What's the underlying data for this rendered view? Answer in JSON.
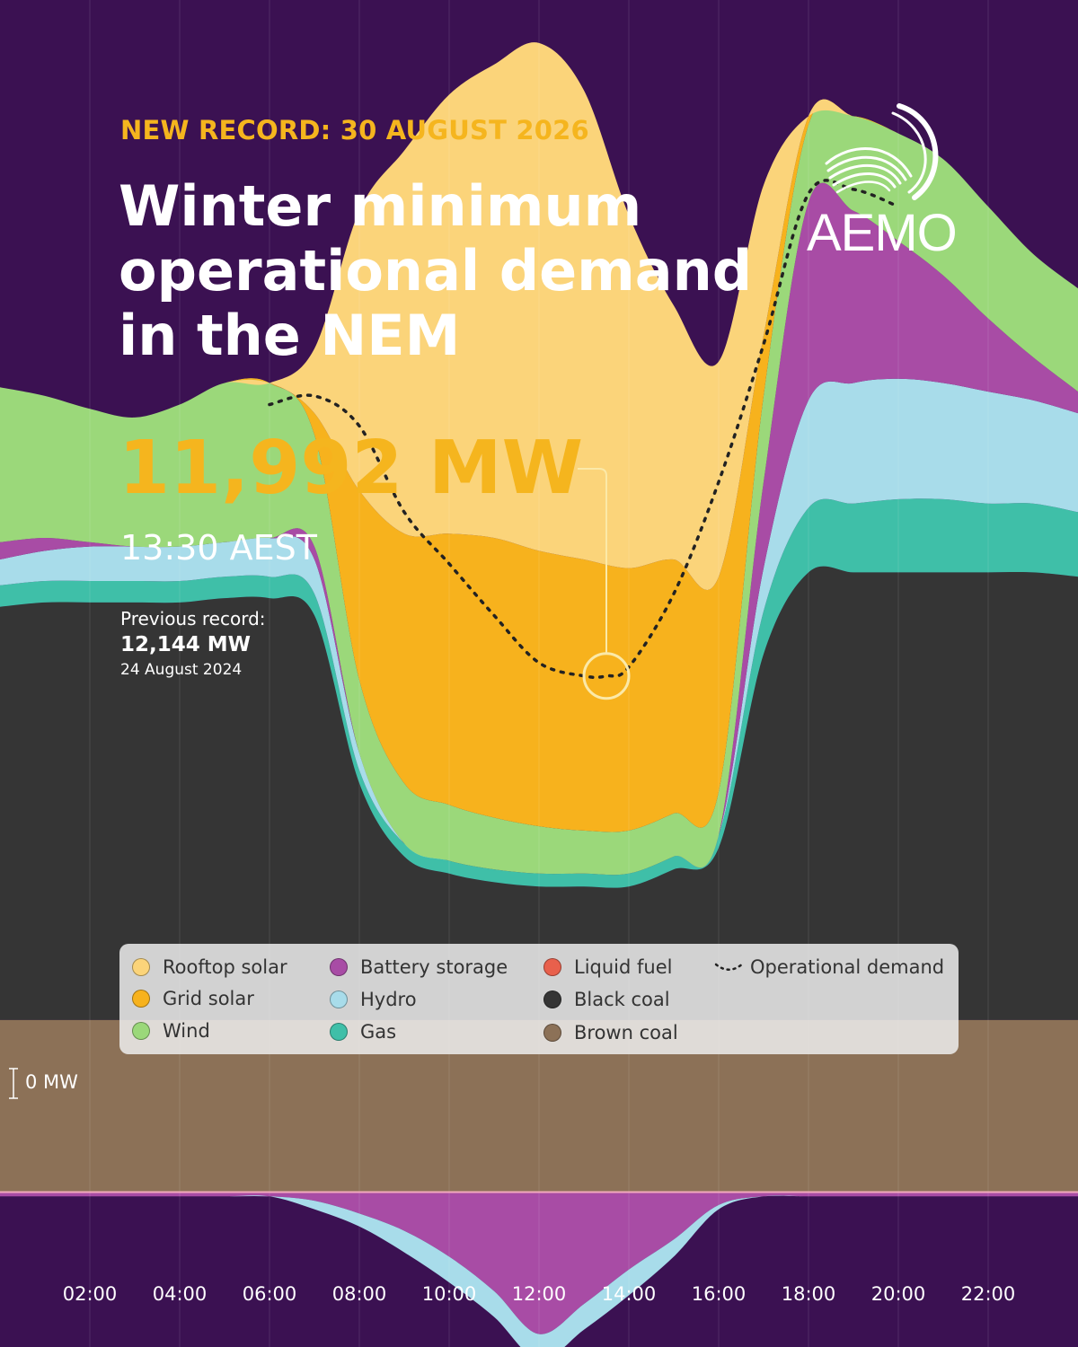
{
  "header": {
    "kicker": "NEW RECORD: 30 AUGUST 2026",
    "title_lines": [
      "Winter minimum",
      "operational demand",
      "in the NEM"
    ]
  },
  "record": {
    "value": "11,992 MW",
    "time": "13:30 AEST",
    "previous_label": "Previous record:",
    "previous_value": "12,144 MW",
    "previous_date": "24 August 2024"
  },
  "logo": {
    "text": "AEMO"
  },
  "zero_label": "0 MW",
  "legend": [
    {
      "label": "Rooftop solar",
      "color": "#fbd47a"
    },
    {
      "label": "Grid solar",
      "color": "#f7b21d"
    },
    {
      "label": "Wind",
      "color": "#9bd87a"
    },
    {
      "label": "Battery storage",
      "color": "#a84ca5"
    },
    {
      "label": "Hydro",
      "color": "#a8dcea"
    },
    {
      "label": "Gas",
      "color": "#3fbfa8"
    },
    {
      "label": "Liquid fuel",
      "color": "#e8604c"
    },
    {
      "label": "Black coal",
      "color": "#353535"
    },
    {
      "label": "Brown coal",
      "color": "#8c7157"
    },
    {
      "label": "Operational demand",
      "color": "#222222"
    }
  ],
  "colors": {
    "background": "#3b1152",
    "accent": "#f5b51e",
    "zero_line": "#f2a9bd",
    "marker": "#fbe9a8"
  },
  "chart_data": {
    "type": "area",
    "stacked": true,
    "unit": "MW",
    "x": [
      "00:00",
      "01:00",
      "02:00",
      "03:00",
      "04:00",
      "05:00",
      "06:00",
      "07:00",
      "08:00",
      "09:00",
      "10:00",
      "11:00",
      "12:00",
      "13:00",
      "14:00",
      "15:00",
      "16:00",
      "17:00",
      "18:00",
      "19:00",
      "20:00",
      "21:00",
      "22:00",
      "23:00",
      "24:00"
    ],
    "x_ticks": [
      "02:00",
      "04:00",
      "06:00",
      "08:00",
      "10:00",
      "12:00",
      "14:00",
      "16:00",
      "18:00",
      "20:00",
      "22:00"
    ],
    "ylim": [
      -3600,
      27700
    ],
    "series": [
      {
        "name": "Brown coal",
        "values": [
          4000,
          4000,
          4000,
          4000,
          4000,
          4000,
          4000,
          4000,
          4000,
          4000,
          4000,
          4000,
          4000,
          4000,
          4000,
          4000,
          4000,
          4000,
          4000,
          4000,
          4000,
          4000,
          4000,
          4000,
          4000
        ]
      },
      {
        "name": "Black coal",
        "values": [
          9600,
          9700,
          9700,
          9700,
          9700,
          9800,
          9800,
          9400,
          5500,
          3800,
          3400,
          3200,
          3100,
          3100,
          3100,
          3500,
          4000,
          8500,
          10400,
          10400,
          10400,
          10400,
          10400,
          10400,
          10300
        ]
      },
      {
        "name": "Gas",
        "values": [
          500,
          500,
          500,
          500,
          500,
          500,
          500,
          500,
          300,
          300,
          300,
          300,
          300,
          300,
          300,
          300,
          300,
          1000,
          1500,
          1600,
          1700,
          1700,
          1600,
          1600,
          1500
        ]
      },
      {
        "name": "Hydro",
        "values": [
          600,
          700,
          800,
          800,
          800,
          800,
          900,
          800,
          400,
          0,
          0,
          0,
          0,
          0,
          0,
          0,
          0,
          1000,
          2500,
          2800,
          2800,
          2700,
          2600,
          2400,
          2300
        ]
      },
      {
        "name": "Battery storage",
        "values": [
          400,
          300,
          100,
          0,
          0,
          0,
          0,
          300,
          0,
          0,
          0,
          0,
          0,
          0,
          0,
          0,
          0,
          2000,
          4600,
          4000,
          3200,
          2500,
          1700,
          1000,
          500
        ]
      },
      {
        "name": "Wind",
        "values": [
          3600,
          3300,
          3100,
          3000,
          3300,
          3700,
          3600,
          2600,
          1700,
          1400,
          1300,
          1200,
          1100,
          1000,
          1000,
          1000,
          1000,
          2000,
          1800,
          2200,
          2500,
          2700,
          2600,
          2400,
          2400
        ]
      },
      {
        "name": "Grid solar",
        "values": [
          0,
          0,
          0,
          0,
          0,
          0,
          0,
          500,
          4400,
          5800,
          6300,
          6500,
          6400,
          6300,
          6100,
          5900,
          5000,
          1400,
          200,
          0,
          0,
          0,
          0,
          0,
          0
        ]
      },
      {
        "name": "Rooftop solar",
        "values": [
          0,
          0,
          0,
          0,
          0,
          0,
          0,
          1500,
          6500,
          8900,
          10200,
          11000,
          11800,
          10900,
          8200,
          5900,
          5000,
          3500,
          0,
          0,
          0,
          0,
          0,
          0,
          0
        ]
      },
      {
        "name": "Battery storage charging",
        "values": [
          -100,
          -100,
          -100,
          -100,
          -100,
          -100,
          -100,
          -200,
          -500,
          -900,
          -1500,
          -2300,
          -3300,
          -2600,
          -1800,
          -1100,
          -300,
          -100,
          -100,
          -100,
          -100,
          -100,
          -100,
          -100,
          -100
        ]
      },
      {
        "name": "Hydro pumping",
        "values": [
          0,
          0,
          0,
          0,
          0,
          0,
          0,
          -200,
          -300,
          -500,
          -600,
          -600,
          -600,
          -600,
          -600,
          -400,
          -100,
          0,
          0,
          0,
          0,
          0,
          0,
          0,
          0
        ]
      }
    ],
    "operational_demand": {
      "name": "Operational demand",
      "x": [
        "06:00",
        "07:00",
        "08:00",
        "09:00",
        "10:00",
        "11:00",
        "12:00",
        "13:00",
        "13:30",
        "14:00",
        "15:00",
        "16:00",
        "17:00",
        "18:00",
        "19:00",
        "20:00"
      ],
      "values": [
        18300,
        18500,
        17800,
        15800,
        14600,
        13400,
        12300,
        11992,
        11992,
        12200,
        13900,
        16500,
        19700,
        23200,
        23300,
        22900
      ]
    },
    "annotations": [
      {
        "time": "13:30",
        "value": 11992,
        "label": "11,992 MW"
      }
    ]
  }
}
